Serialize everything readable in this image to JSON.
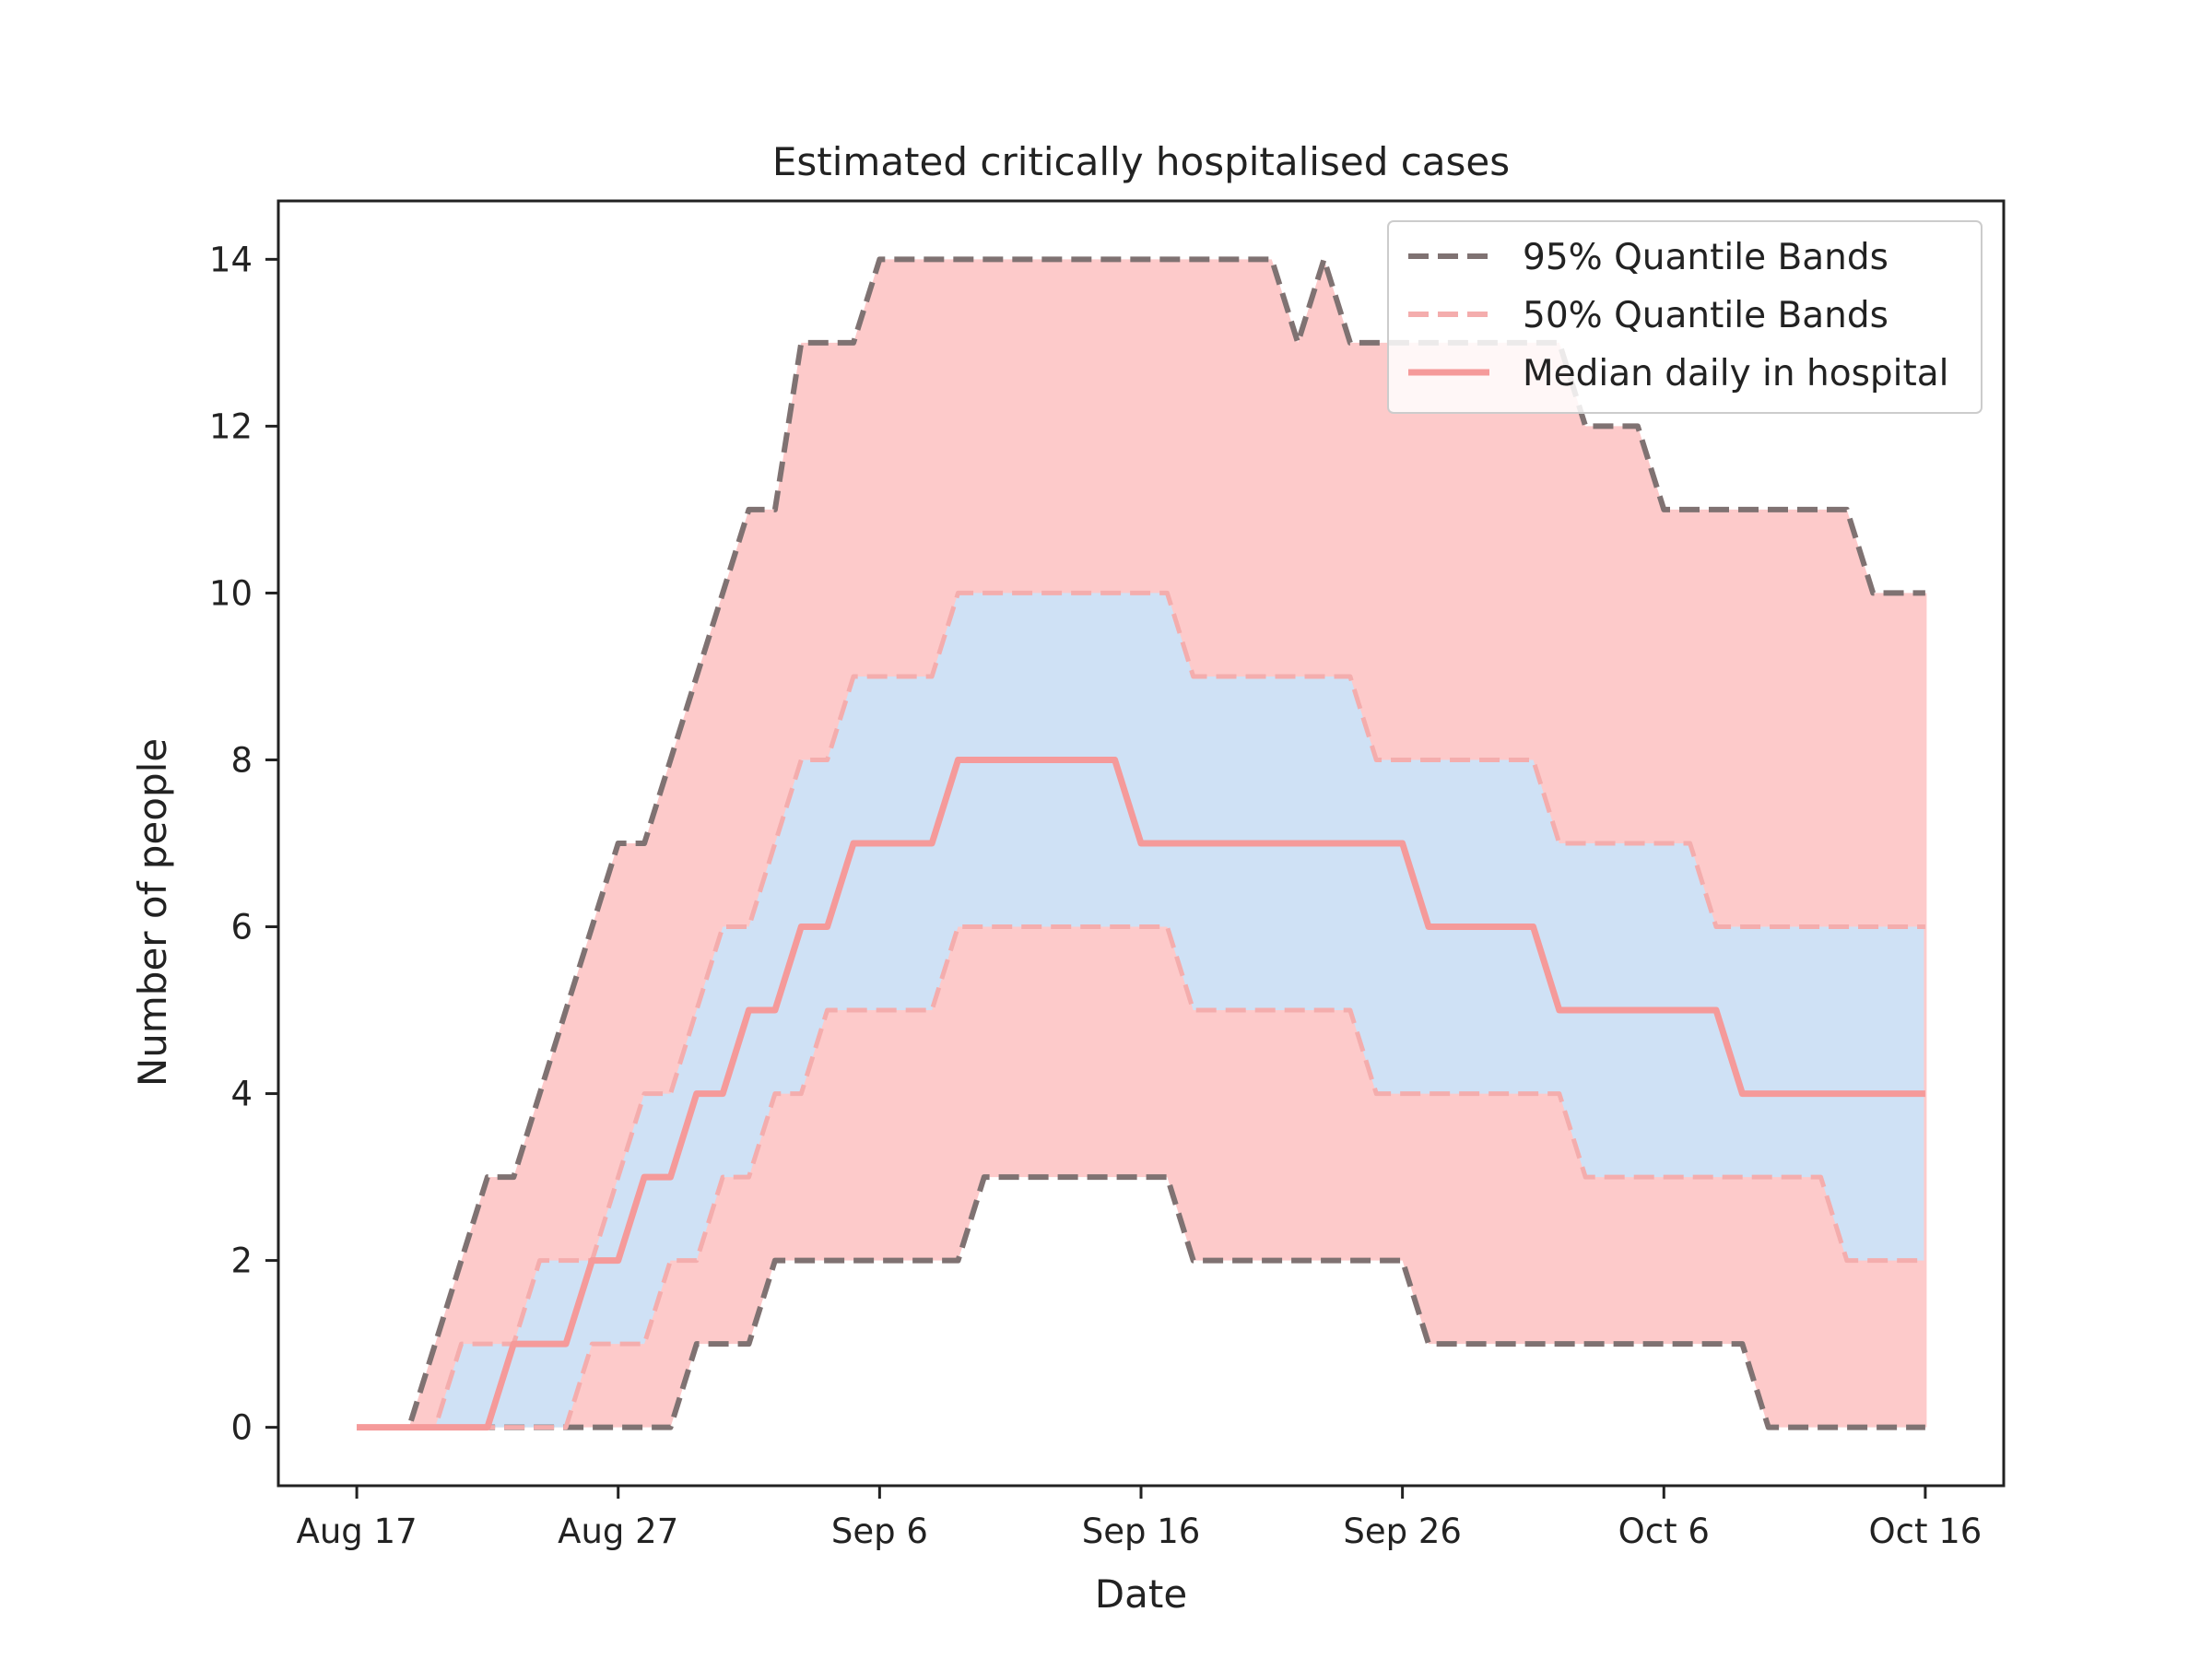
{
  "chart_data": {
    "type": "line",
    "title": "Estimated critically hospitalised cases",
    "xlabel": "Date",
    "ylabel": "Number of people",
    "x_start": "2020-08-17",
    "x_end": "2020-10-16",
    "xlim": [
      "2020-08-14",
      "2020-10-19"
    ],
    "ylim": [
      -0.7,
      14.7
    ],
    "x_ticks": [
      "Aug 17",
      "Aug 27",
      "Sep 6",
      "Sep 16",
      "Sep 26",
      "Oct 6",
      "Oct 16"
    ],
    "x_tick_dates": [
      "2020-08-17",
      "2020-08-27",
      "2020-09-06",
      "2020-09-16",
      "2020-09-26",
      "2020-10-06",
      "2020-10-16"
    ],
    "y_ticks": [
      0,
      2,
      4,
      6,
      8,
      10,
      12,
      14
    ],
    "grid": false,
    "legend_position": "top-right",
    "colors": {
      "outer_band_fill": "#fdcaca",
      "inner_band_fill": "#cfe1f5",
      "band95_line": "#7f7272",
      "band50_line": "#f4adad",
      "median_line": "#f59a9a",
      "axes": "#222222"
    },
    "series": [
      {
        "name": "95% Quantile Bands",
        "role": "upper",
        "values": [
          0,
          0,
          0,
          1,
          2,
          3,
          3,
          4,
          5,
          6,
          7,
          7,
          8,
          9,
          10,
          11,
          11,
          13,
          13,
          13,
          14,
          14,
          14,
          14,
          14,
          14,
          14,
          14,
          14,
          14,
          14,
          14,
          14,
          14,
          14,
          14,
          13,
          14,
          13,
          13,
          13,
          13,
          13,
          13,
          13,
          13,
          13,
          12,
          12,
          12,
          11,
          11,
          11,
          11,
          11,
          11,
          11,
          11,
          10,
          10,
          10
        ]
      },
      {
        "name": "95% Quantile Bands",
        "role": "lower",
        "values": [
          0,
          0,
          0,
          0,
          0,
          0,
          0,
          0,
          0,
          0,
          0,
          0,
          0,
          1,
          1,
          1,
          2,
          2,
          2,
          2,
          2,
          2,
          2,
          2,
          3,
          3,
          3,
          3,
          3,
          3,
          3,
          3,
          2,
          2,
          2,
          2,
          2,
          2,
          2,
          2,
          2,
          1,
          1,
          1,
          1,
          1,
          1,
          1,
          1,
          1,
          1,
          1,
          1,
          1,
          0,
          0,
          0,
          0,
          0,
          0,
          0
        ]
      },
      {
        "name": "50% Quantile Bands",
        "role": "upper",
        "values": [
          0,
          0,
          0,
          0,
          1,
          1,
          1,
          2,
          2,
          2,
          3,
          4,
          4,
          5,
          6,
          6,
          7,
          8,
          8,
          9,
          9,
          9,
          9,
          10,
          10,
          10,
          10,
          10,
          10,
          10,
          10,
          10,
          9,
          9,
          9,
          9,
          9,
          9,
          9,
          8,
          8,
          8,
          8,
          8,
          8,
          8,
          7,
          7,
          7,
          7,
          7,
          7,
          6,
          6,
          6,
          6,
          6,
          6,
          6,
          6,
          6
        ]
      },
      {
        "name": "50% Quantile Bands",
        "role": "lower",
        "values": [
          0,
          0,
          0,
          0,
          0,
          0,
          0,
          0,
          0,
          1,
          1,
          1,
          2,
          2,
          3,
          3,
          4,
          4,
          5,
          5,
          5,
          5,
          5,
          6,
          6,
          6,
          6,
          6,
          6,
          6,
          6,
          6,
          5,
          5,
          5,
          5,
          5,
          5,
          5,
          4,
          4,
          4,
          4,
          4,
          4,
          4,
          4,
          3,
          3,
          3,
          3,
          3,
          3,
          3,
          3,
          3,
          3,
          2,
          2,
          2,
          2
        ]
      },
      {
        "name": "Median daily in hospital",
        "role": "median",
        "values": [
          0,
          0,
          0,
          0,
          0,
          0,
          1,
          1,
          1,
          2,
          2,
          3,
          3,
          4,
          4,
          5,
          5,
          6,
          6,
          7,
          7,
          7,
          7,
          8,
          8,
          8,
          8,
          8,
          8,
          8,
          7,
          7,
          7,
          7,
          7,
          7,
          7,
          7,
          7,
          7,
          7,
          6,
          6,
          6,
          6,
          6,
          5,
          5,
          5,
          5,
          5,
          5,
          5,
          4,
          4,
          4,
          4,
          4,
          4,
          4,
          4
        ]
      }
    ],
    "legend": [
      "95% Quantile Bands",
      "50% Quantile Bands",
      "Median daily in hospital"
    ]
  }
}
